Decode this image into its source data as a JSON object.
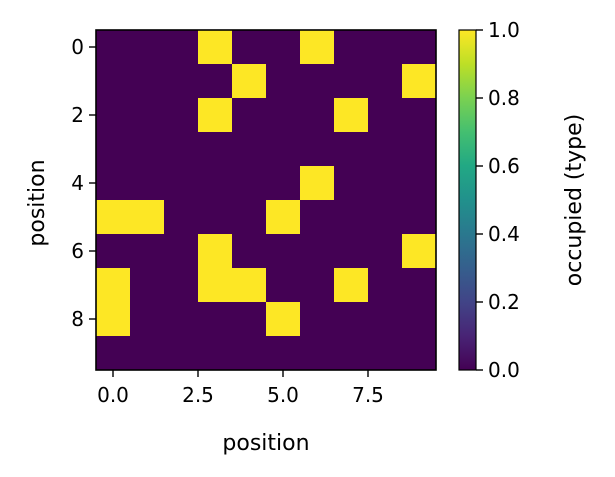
{
  "chart_data": {
    "type": "heatmap",
    "xlabel": "position",
    "ylabel": "position",
    "colorbar_label": "occupied (type)",
    "rows": 10,
    "cols": 10,
    "x_range": [
      -0.5,
      9.5
    ],
    "y_range": [
      9.5,
      -0.5
    ],
    "x_ticks": [
      0.0,
      2.5,
      5.0,
      7.5
    ],
    "x_tick_labels": [
      "0.0",
      "2.5",
      "5.0",
      "7.5"
    ],
    "y_ticks": [
      0,
      2,
      4,
      6,
      8
    ],
    "y_tick_labels": [
      "0",
      "2",
      "4",
      "6",
      "8"
    ],
    "colorbar_range": [
      0.0,
      1.0
    ],
    "colorbar_ticks": [
      0.0,
      0.2,
      0.4,
      0.6,
      0.8,
      1.0
    ],
    "colorbar_tick_labels": [
      "0.0",
      "0.2",
      "0.4",
      "0.6",
      "0.8",
      "1.0"
    ],
    "colormap": "viridis",
    "low_color": "#440154",
    "high_color": "#fde725",
    "grid": false,
    "values": [
      [
        0,
        0,
        0,
        1,
        0,
        0,
        1,
        0,
        0,
        0
      ],
      [
        0,
        0,
        0,
        0,
        1,
        0,
        0,
        0,
        0,
        1
      ],
      [
        0,
        0,
        0,
        1,
        0,
        0,
        0,
        1,
        0,
        0
      ],
      [
        0,
        0,
        0,
        0,
        0,
        0,
        0,
        0,
        0,
        0
      ],
      [
        0,
        0,
        0,
        0,
        0,
        0,
        1,
        0,
        0,
        0
      ],
      [
        1,
        1,
        0,
        0,
        0,
        1,
        0,
        0,
        0,
        0
      ],
      [
        0,
        0,
        0,
        1,
        0,
        0,
        0,
        0,
        0,
        1
      ],
      [
        1,
        0,
        0,
        1,
        1,
        0,
        0,
        1,
        0,
        0
      ],
      [
        1,
        0,
        0,
        0,
        0,
        1,
        0,
        0,
        0,
        0
      ],
      [
        0,
        0,
        0,
        0,
        0,
        0,
        0,
        0,
        0,
        0
      ]
    ]
  }
}
